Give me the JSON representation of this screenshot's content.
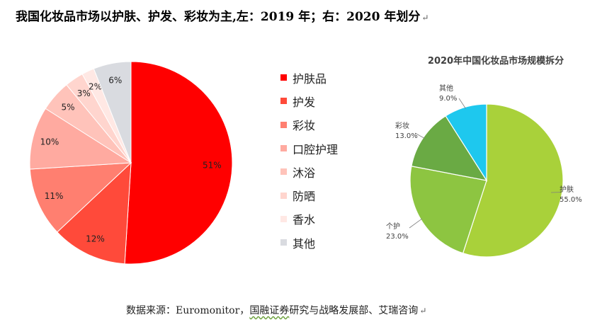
{
  "title": "我国化妆品市场以护肤、护发、彩妆为主,左：2019 年；右：2020 年划分",
  "para_mark": "↵",
  "source": {
    "before": "数据来源：Euromonitor，",
    "underlined": "国融证券",
    "after": "研究与战略发展部、艾瑞咨询"
  },
  "chart_data": [
    {
      "type": "pie",
      "year": "2019",
      "title": "",
      "categories": [
        "护肤品",
        "护发",
        "彩妆",
        "口腔护理",
        "沐浴",
        "防晒",
        "香水",
        "其他"
      ],
      "values": [
        51,
        12,
        11,
        10,
        5,
        3,
        2,
        6
      ],
      "labels": [
        "51%",
        "12%",
        "11%",
        "10%",
        "5%",
        "3%",
        "2%",
        "6%"
      ],
      "colors": [
        "#ff0000",
        "#ff4a3a",
        "#ff7f70",
        "#ffaaa0",
        "#ffc3ba",
        "#ffd5ce",
        "#ffe8e4",
        "#d9dbe0"
      ],
      "legend": "right"
    },
    {
      "type": "pie",
      "year": "2020",
      "title": "2020年中国化妆品市场规模拆分",
      "categories": [
        "护肤",
        "个护",
        "彩妆",
        "其他"
      ],
      "values": [
        55.0,
        23.0,
        13.0,
        9.0
      ],
      "labels": [
        "55.0%",
        "23.0%",
        "13.0%",
        "9.0%"
      ],
      "colors": [
        "#a9d13a",
        "#8dc541",
        "#6aaa44",
        "#1ec8ee"
      ],
      "legend": "none"
    }
  ]
}
